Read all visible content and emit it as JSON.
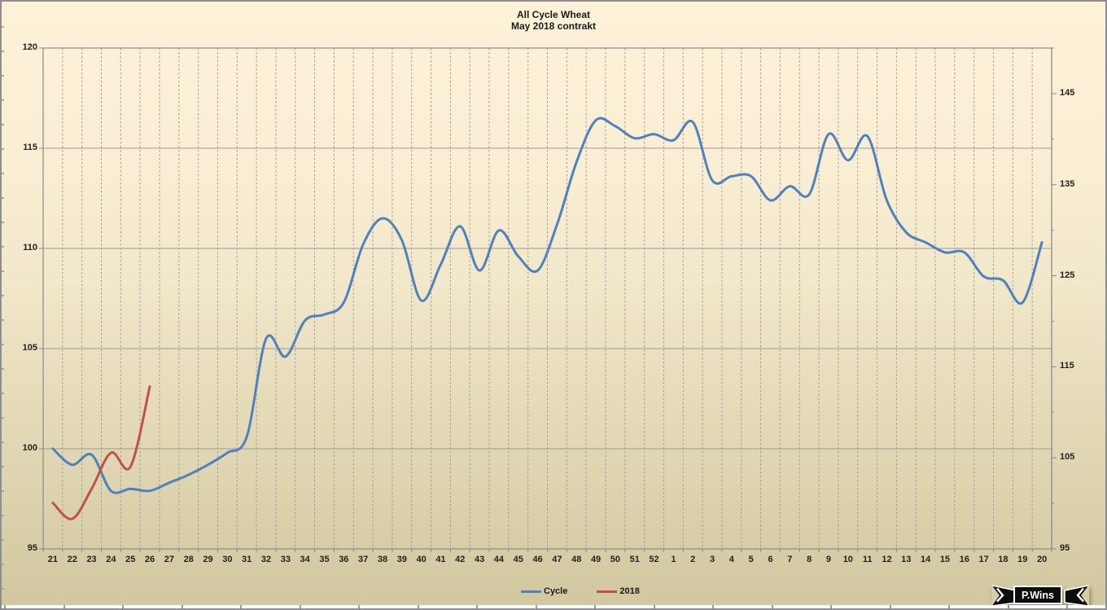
{
  "title": "All Cycle Wheat",
  "subtitle": "May 2018 contrakt",
  "badge": {
    "label": "P.Wins"
  },
  "legend": [
    {
      "label": "Cycle",
      "color": "#4f81bd"
    },
    {
      "label": "2018",
      "color": "#c0504d"
    }
  ],
  "chart_data": {
    "type": "line",
    "title": "All Cycle Wheat",
    "subtitle": "May 2018 contrakt",
    "smoothed": true,
    "x_categories": [
      "21",
      "22",
      "23",
      "24",
      "25",
      "26",
      "27",
      "28",
      "29",
      "30",
      "31",
      "32",
      "33",
      "34",
      "35",
      "36",
      "37",
      "38",
      "39",
      "40",
      "41",
      "42",
      "43",
      "44",
      "45",
      "46",
      "47",
      "48",
      "49",
      "50",
      "51",
      "52",
      "1",
      "2",
      "3",
      "4",
      "5",
      "6",
      "7",
      "8",
      "9",
      "10",
      "11",
      "12",
      "13",
      "14",
      "15",
      "16",
      "17",
      "18",
      "19",
      "20"
    ],
    "left_axis": {
      "min": 95,
      "max": 120,
      "ticks": [
        95,
        100,
        105,
        110,
        115,
        120
      ]
    },
    "right_axis": {
      "min": 95,
      "max": 150,
      "ticks": [
        95,
        105,
        115,
        125,
        135,
        145
      ]
    },
    "grid": {
      "horizontal_values": [
        100,
        105,
        110,
        115
      ],
      "vertical": "dashed at every category boundary"
    },
    "legend_position": "bottom",
    "series": [
      {
        "name": "Cycle",
        "color": "#4f81bd",
        "axis": "left",
        "values": [
          100.0,
          99.2,
          99.7,
          97.9,
          98.0,
          97.9,
          98.3,
          98.7,
          99.2,
          99.8,
          100.6,
          105.5,
          104.6,
          106.4,
          106.7,
          107.3,
          110.2,
          111.5,
          110.4,
          107.4,
          109.2,
          111.1,
          108.9,
          110.9,
          109.6,
          108.9,
          111.2,
          114.3,
          116.4,
          116.1,
          115.5,
          115.7,
          115.4,
          116.3,
          113.4,
          113.6,
          113.6,
          112.4,
          113.1,
          112.7,
          115.7,
          114.4,
          115.6,
          112.4,
          110.8,
          110.3,
          109.8,
          109.8,
          108.6,
          108.4,
          107.3,
          110.3
        ]
      },
      {
        "name": "2018",
        "color": "#c0504d",
        "axis": "left",
        "values": [
          97.3,
          96.5,
          98.0,
          99.8,
          99.1,
          103.1
        ]
      }
    ]
  }
}
